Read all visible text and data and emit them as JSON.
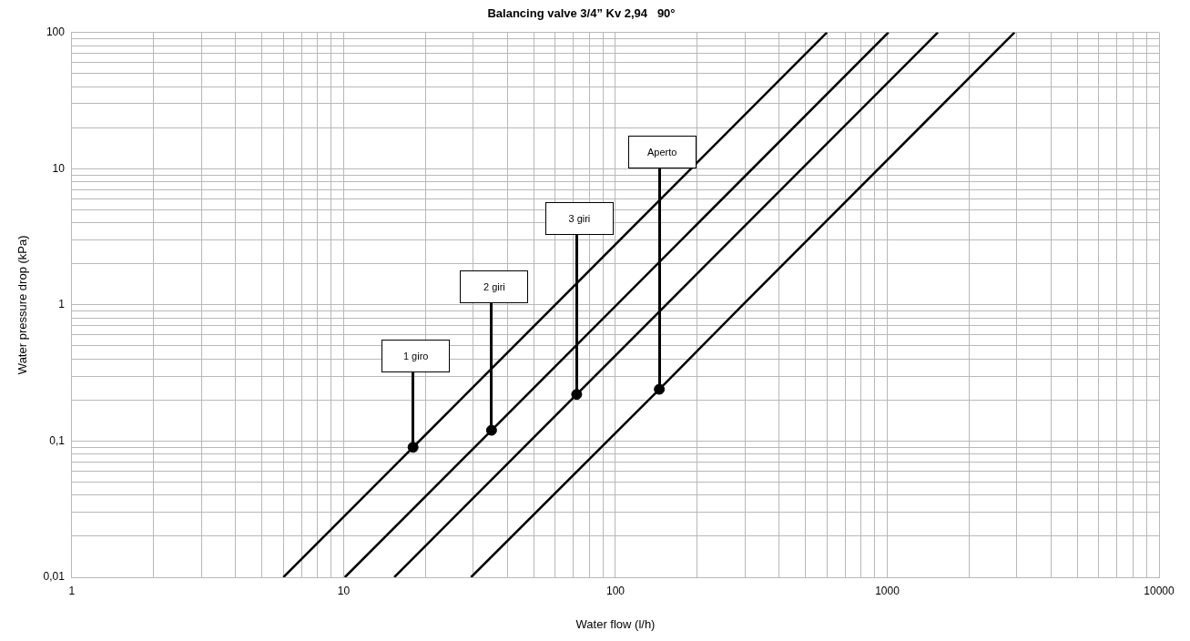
{
  "chart_data": {
    "type": "line",
    "title": "Balancing valve 3/4” Kv 2,94   90°",
    "xlabel": "Water flow (l/h)",
    "ylabel": "Water pressure drop (kPa)",
    "log": "xy",
    "grid": true,
    "legend": false,
    "line_style": "solid",
    "marker": "none",
    "xlim": [
      1,
      10000
    ],
    "ylim": [
      0.01,
      100
    ],
    "xticks": [
      1,
      {
        "value": 2,
        "label": null
      },
      {
        "value": 3,
        "label": null
      },
      {
        "value": 4,
        "label": null
      },
      {
        "value": 5,
        "label": null
      },
      {
        "value": 6,
        "label": null
      },
      {
        "value": 7,
        "label": null
      },
      {
        "value": 8,
        "label": null
      },
      {
        "value": 9,
        "label": null
      },
      10,
      {
        "value": 20,
        "label": null
      },
      {
        "value": 30,
        "label": null
      },
      {
        "value": 40,
        "label": null
      },
      {
        "value": 50,
        "label": null
      },
      {
        "value": 60,
        "label": null
      },
      {
        "value": 70,
        "label": null
      },
      {
        "value": 80,
        "label": null
      },
      {
        "value": 90,
        "label": null
      },
      100,
      {
        "value": 200,
        "label": null
      },
      {
        "value": 300,
        "label": null
      },
      {
        "value": 400,
        "label": null
      },
      {
        "value": 500,
        "label": null
      },
      {
        "value": 600,
        "label": null
      },
      {
        "value": 700,
        "label": null
      },
      {
        "value": 800,
        "label": null
      },
      {
        "value": 900,
        "label": null
      },
      1000,
      {
        "value": 2000,
        "label": null
      },
      {
        "value": 3000,
        "label": null
      },
      {
        "value": 4000,
        "label": null
      },
      {
        "value": 5000,
        "label": null
      },
      {
        "value": 6000,
        "label": null
      },
      {
        "value": 7000,
        "label": null
      },
      {
        "value": 8000,
        "label": null
      },
      {
        "value": 9000,
        "label": null
      },
      10000
    ],
    "yticks": [
      {
        "value": 0.01,
        "label": "0,01"
      },
      {
        "value": 0.02,
        "label": null
      },
      {
        "value": 0.03,
        "label": null
      },
      {
        "value": 0.04,
        "label": null
      },
      {
        "value": 0.05,
        "label": null
      },
      {
        "value": 0.06,
        "label": null
      },
      {
        "value": 0.07,
        "label": null
      },
      {
        "value": 0.08,
        "label": null
      },
      {
        "value": 0.09,
        "label": null
      },
      {
        "value": 0.1,
        "label": "0,1"
      },
      {
        "value": 0.2,
        "label": null
      },
      {
        "value": 0.3,
        "label": null
      },
      {
        "value": 0.4,
        "label": null
      },
      {
        "value": 0.5,
        "label": null
      },
      {
        "value": 0.6,
        "label": null
      },
      {
        "value": 0.7,
        "label": null
      },
      {
        "value": 0.8,
        "label": null
      },
      {
        "value": 0.9,
        "label": null
      },
      1,
      {
        "value": 2,
        "label": null
      },
      {
        "value": 3,
        "label": null
      },
      {
        "value": 4,
        "label": null
      },
      {
        "value": 5,
        "label": null
      },
      {
        "value": 6,
        "label": null
      },
      {
        "value": 7,
        "label": null
      },
      {
        "value": 8,
        "label": null
      },
      {
        "value": 9,
        "label": null
      },
      10,
      {
        "value": 20,
        "label": null
      },
      {
        "value": 30,
        "label": null
      },
      {
        "value": 40,
        "label": null
      },
      {
        "value": 50,
        "label": null
      },
      {
        "value": 60,
        "label": null
      },
      {
        "value": 70,
        "label": null
      },
      {
        "value": 80,
        "label": null
      },
      {
        "value": 90,
        "label": null
      },
      100
    ],
    "series": [
      {
        "color": "#000000",
        "x": [
          6,
          18,
          60,
          600
        ],
        "values": [
          0.01,
          0.09,
          1,
          100
        ]
      },
      {
        "color": "#000000",
        "x": [
          10.1,
          35,
          101,
          1010
        ],
        "values": [
          0.01,
          0.12,
          1,
          100
        ]
      },
      {
        "color": "#000000",
        "x": [
          15.35,
          72,
          153.5,
          1535
        ],
        "values": [
          0.01,
          0.22,
          1,
          100
        ]
      },
      {
        "color": "#000000",
        "x": [
          29.4,
          145,
          294,
          2940
        ],
        "values": [
          0.01,
          0.24,
          1,
          100
        ]
      },
      {
        "type": "scatter",
        "color": "#000000",
        "marker": "circle",
        "x": [
          18,
          35,
          72,
          145
        ],
        "values": [
          0.09,
          0.12,
          0.22,
          0.24
        ]
      }
    ],
    "annotations": [
      "1 giro",
      "2 giri",
      "3 giri",
      "Aperto"
    ]
  }
}
